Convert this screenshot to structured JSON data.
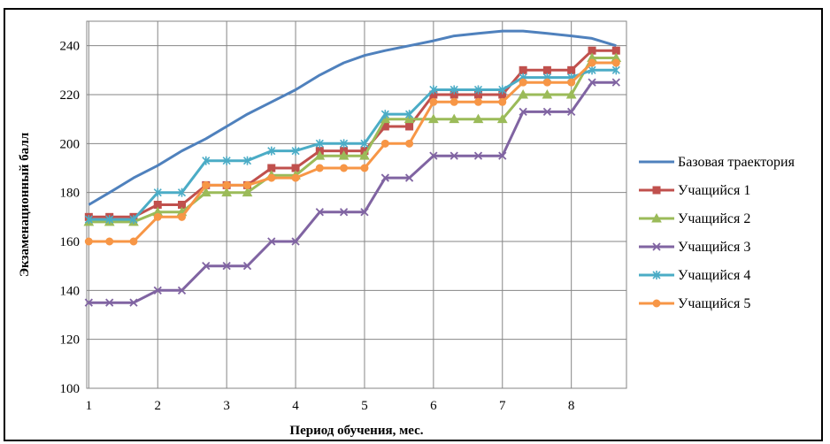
{
  "chart_data": {
    "type": "line",
    "title": "",
    "xlabel": "Период обучения, мес.",
    "ylabel": "Экзаменационный балл",
    "xlim": [
      0.97,
      8.8
    ],
    "ylim": [
      100,
      250
    ],
    "x_ticks": [
      "1",
      "2",
      "3",
      "4",
      "5",
      "6",
      "7",
      "8"
    ],
    "y_ticks": [
      "100",
      "120",
      "140",
      "160",
      "180",
      "200",
      "220",
      "240"
    ],
    "grid": true,
    "legend_position": "right",
    "x": [
      1.0,
      1.3,
      1.65,
      2.0,
      2.35,
      2.7,
      3.0,
      3.3,
      3.65,
      4.0,
      4.35,
      4.7,
      5.0,
      5.3,
      5.65,
      6.0,
      6.3,
      6.65,
      7.0,
      7.3,
      7.65,
      8.0,
      8.3,
      8.65
    ],
    "series": [
      {
        "name": "Базовая траектория",
        "color": "#4F81BD",
        "marker": "none",
        "x": [
          1.0,
          1.3,
          1.65,
          2.0,
          2.35,
          2.7,
          3.0,
          3.3,
          3.65,
          4.0,
          4.35,
          4.7,
          5.0,
          5.3,
          5.65,
          6.0,
          6.3,
          6.65,
          7.0,
          7.3,
          7.65,
          8.0,
          8.3,
          8.65
        ],
        "values": [
          175,
          180,
          186,
          191,
          197,
          202,
          207,
          212,
          217,
          222,
          228,
          233,
          236,
          238,
          240,
          242,
          244,
          245,
          246,
          246,
          245,
          244,
          243,
          240
        ]
      },
      {
        "name": "Учащийся 1",
        "color": "#C0504D",
        "marker": "square",
        "x": [
          1.0,
          1.3,
          1.65,
          2.0,
          2.35,
          2.7,
          3.0,
          3.3,
          3.65,
          4.0,
          4.35,
          4.7,
          5.0,
          5.3,
          5.65,
          6.0,
          6.3,
          6.65,
          7.0,
          7.3,
          7.65,
          8.0,
          8.3,
          8.65
        ],
        "values": [
          170,
          170,
          170,
          175,
          175,
          183,
          183,
          183,
          190,
          190,
          197,
          197,
          197,
          207,
          207,
          220,
          220,
          220,
          220,
          230,
          230,
          230,
          238,
          238
        ]
      },
      {
        "name": "Учащийся 2",
        "color": "#9BBB59",
        "marker": "triangle",
        "x": [
          1.0,
          1.3,
          1.65,
          2.0,
          2.35,
          2.7,
          3.0,
          3.3,
          3.65,
          4.0,
          4.35,
          4.7,
          5.0,
          5.3,
          5.65,
          6.0,
          6.3,
          6.65,
          7.0,
          7.3,
          7.65,
          8.0,
          8.3,
          8.65
        ],
        "values": [
          168,
          168,
          168,
          172,
          172,
          180,
          180,
          180,
          187,
          187,
          195,
          195,
          195,
          210,
          210,
          210,
          210,
          210,
          210,
          220,
          220,
          220,
          235,
          235
        ]
      },
      {
        "name": "Учащийся 3",
        "color": "#8064A2",
        "marker": "x",
        "x": [
          1.0,
          1.3,
          1.65,
          2.0,
          2.35,
          2.7,
          3.0,
          3.3,
          3.65,
          4.0,
          4.35,
          4.7,
          5.0,
          5.3,
          5.65,
          6.0,
          6.3,
          6.65,
          7.0,
          7.3,
          7.65,
          8.0,
          8.3,
          8.65
        ],
        "values": [
          135,
          135,
          135,
          140,
          140,
          150,
          150,
          150,
          160,
          160,
          172,
          172,
          172,
          186,
          186,
          195,
          195,
          195,
          195,
          213,
          213,
          213,
          225,
          225
        ]
      },
      {
        "name": "Учащийся 4",
        "color": "#4BACC6",
        "marker": "star",
        "x": [
          1.0,
          1.3,
          1.65,
          2.0,
          2.35,
          2.7,
          3.0,
          3.3,
          3.65,
          4.0,
          4.35,
          4.7,
          5.0,
          5.3,
          5.65,
          6.0,
          6.3,
          6.65,
          7.0,
          7.3,
          7.65,
          8.0,
          8.3,
          8.65
        ],
        "values": [
          169,
          169,
          169,
          180,
          180,
          193,
          193,
          193,
          197,
          197,
          200,
          200,
          200,
          212,
          212,
          222,
          222,
          222,
          222,
          227,
          227,
          227,
          230,
          230
        ]
      },
      {
        "name": "Учащийся 5",
        "color": "#F79646",
        "marker": "circle",
        "x": [
          1.0,
          1.3,
          1.65,
          2.0,
          2.35,
          2.7,
          3.0,
          3.3,
          3.65,
          4.0,
          4.35,
          4.7,
          5.0,
          5.3,
          5.65,
          6.0,
          6.3,
          6.65,
          7.0,
          7.3,
          7.65,
          8.0,
          8.3,
          8.65
        ],
        "values": [
          160,
          160,
          160,
          170,
          170,
          183,
          183,
          183,
          186,
          186,
          190,
          190,
          190,
          200,
          200,
          217,
          217,
          217,
          217,
          225,
          225,
          225,
          233,
          233
        ]
      }
    ]
  }
}
